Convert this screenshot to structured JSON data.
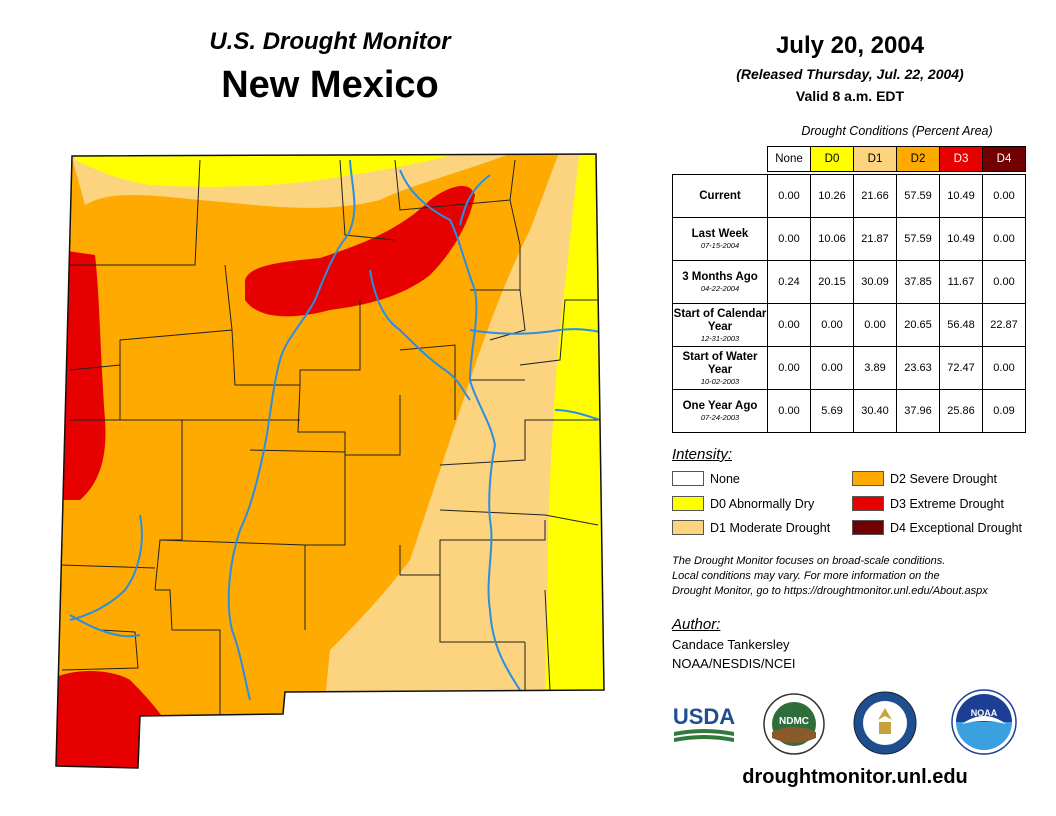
{
  "header": {
    "title_line1": "U.S. Drought Monitor",
    "title_line2": "New Mexico",
    "date": "July 20, 2004",
    "released": "(Released Thursday, Jul. 22, 2004)",
    "valid": "Valid 8 a.m. EDT"
  },
  "table": {
    "caption": "Drought Conditions (Percent Area)",
    "columns": [
      "None",
      "D0",
      "D1",
      "D2",
      "D3",
      "D4"
    ],
    "column_colors": [
      "#ffffff",
      "#ffff00",
      "#fcd37f",
      "#ffaa00",
      "#e60000",
      "#730000"
    ],
    "rows": [
      {
        "label": "Current",
        "date": "",
        "values": [
          "0.00",
          "10.26",
          "21.66",
          "57.59",
          "10.49",
          "0.00"
        ]
      },
      {
        "label": "Last Week",
        "date": "07-15-2004",
        "values": [
          "0.00",
          "10.06",
          "21.87",
          "57.59",
          "10.49",
          "0.00"
        ]
      },
      {
        "label": "3 Months Ago",
        "date": "04-22-2004",
        "values": [
          "0.24",
          "20.15",
          "30.09",
          "37.85",
          "11.67",
          "0.00"
        ]
      },
      {
        "label": "Start of Calendar Year",
        "date": "12-31-2003",
        "values": [
          "0.00",
          "0.00",
          "0.00",
          "20.65",
          "56.48",
          "22.87"
        ]
      },
      {
        "label": "Start of Water Year",
        "date": "10-02-2003",
        "values": [
          "0.00",
          "0.00",
          "3.89",
          "23.63",
          "72.47",
          "0.00"
        ]
      },
      {
        "label": "One Year Ago",
        "date": "07-24-2003",
        "values": [
          "0.00",
          "5.69",
          "30.40",
          "37.96",
          "25.86",
          "0.09"
        ]
      }
    ]
  },
  "legend": {
    "title": "Intensity:",
    "items": [
      {
        "label": "None",
        "color": "#ffffff"
      },
      {
        "label": "D0 Abnormally Dry",
        "color": "#ffff00"
      },
      {
        "label": "D1 Moderate Drought",
        "color": "#fcd37f"
      },
      {
        "label": "D2 Severe Drought",
        "color": "#ffaa00"
      },
      {
        "label": "D3 Extreme Drought",
        "color": "#e60000"
      },
      {
        "label": "D4 Exceptional Drought",
        "color": "#730000"
      }
    ]
  },
  "note": {
    "line1": "The Drought Monitor focuses on broad-scale conditions.",
    "line2": "Local conditions may vary. For more information on the",
    "line3": "Drought Monitor, go to https://droughtmonitor.unl.edu/About.aspx"
  },
  "author": {
    "title": "Author:",
    "name": "Candace Tankersley",
    "org": "NOAA/NESDIS/NCEI"
  },
  "logos": {
    "usda": "USDA",
    "ndmc": "NDMC",
    "noaa": "NOAA"
  },
  "footer": {
    "site": "droughtmonitor.unl.edu"
  },
  "map": {
    "river_color": "#2b8ee0",
    "county_line_color": "#222222"
  }
}
